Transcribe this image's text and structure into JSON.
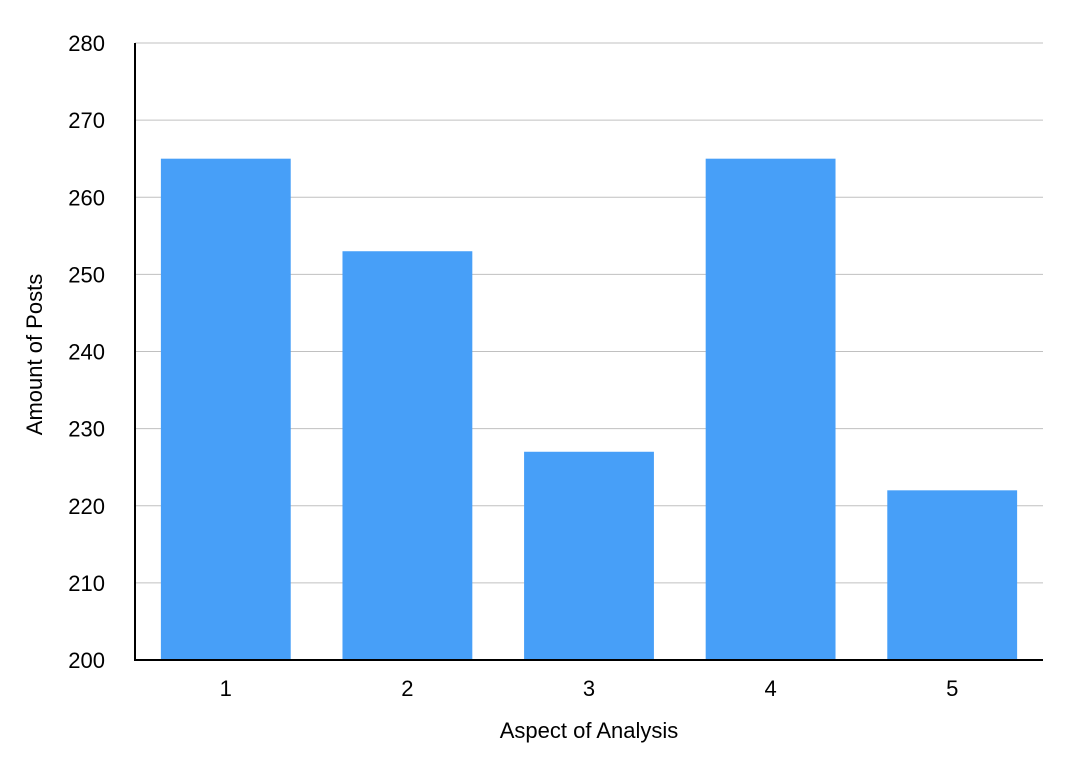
{
  "chart_data": {
    "type": "bar",
    "categories": [
      "1",
      "2",
      "3",
      "4",
      "5"
    ],
    "series": [
      {
        "values": [
          265,
          253,
          227,
          265,
          222
        ]
      }
    ],
    "xlabel": "Aspect of Analysis",
    "ylabel": "Amount of Posts",
    "ylim": [
      200,
      280
    ],
    "yticks": [
      200,
      210,
      220,
      230,
      240,
      250,
      260,
      270,
      280
    ],
    "grid": true,
    "legend": "none",
    "colors": {
      "bar": "#479ff8",
      "grid": "#c0c0c0",
      "axis": "#000000"
    }
  }
}
